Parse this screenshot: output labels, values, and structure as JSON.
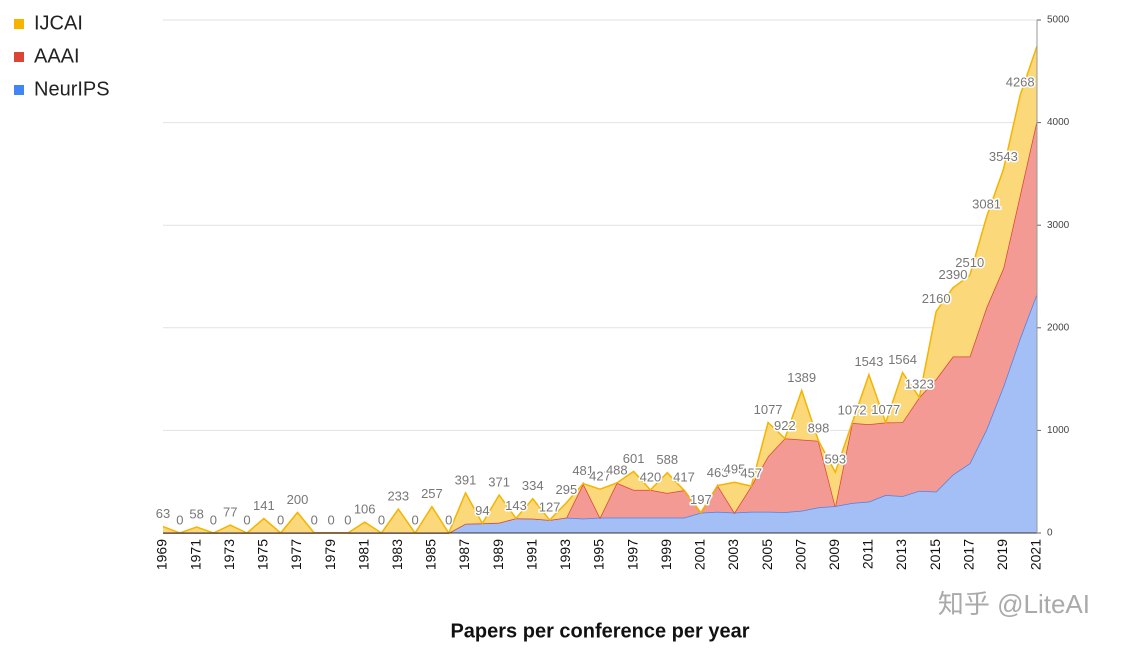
{
  "chart_data": {
    "type": "stacked_area",
    "title": "Papers per conference per year",
    "watermark": "知乎 @LiteAI",
    "categories": [
      "1969",
      null,
      "1971",
      null,
      "1973",
      null,
      "1975",
      null,
      "1977",
      null,
      "1979",
      null,
      "1981",
      null,
      "1983",
      null,
      "1985",
      null,
      "1987",
      null,
      "1989",
      null,
      "1991",
      null,
      "1993",
      null,
      "1995",
      null,
      "1997",
      null,
      "1999",
      null,
      "2001",
      null,
      "2003",
      null,
      "2005",
      null,
      "2007",
      null,
      "2009",
      null,
      "2011",
      null,
      "2013",
      null,
      "2015",
      null,
      "2017",
      null,
      "2019",
      null,
      "2021"
    ],
    "series": [
      {
        "name": "IJCAI",
        "color": "#f4b400",
        "fill": "#fbd87a",
        "values": [
          63,
          0,
          58,
          0,
          77,
          0,
          141,
          0,
          200,
          0,
          0,
          0,
          106,
          0,
          233,
          0,
          257,
          0,
          301,
          0,
          271,
          0,
          194,
          0,
          145,
          0,
          277,
          0,
          181,
          0,
          198,
          0,
          0,
          0,
          297,
          0,
          330,
          0,
          479,
          0,
          331,
          0,
          483,
          0,
          484,
          0,
          660,
          670,
          790,
          881,
          963,
          968,
          720
        ]
      },
      {
        "name": "AAAI",
        "color": "#db4437",
        "fill": "#f29a93",
        "values": [
          0,
          0,
          0,
          0,
          0,
          0,
          0,
          0,
          0,
          0,
          0,
          0,
          0,
          0,
          0,
          0,
          0,
          0,
          0,
          0,
          0,
          0,
          0,
          0,
          0,
          341,
          0,
          338,
          270,
          270,
          240,
          267,
          0,
          256,
          0,
          250,
          540,
          718,
          693,
          648,
          0,
          780,
          754,
          707,
          720,
          912,
          1097,
          1151,
          1041,
          1189,
          1152,
          1400,
          1692
        ]
      },
      {
        "name": "NeurIPS",
        "color": "#4285f4",
        "fill": "#a3bff5",
        "values": [
          0,
          0,
          0,
          0,
          0,
          0,
          0,
          0,
          0,
          0,
          0,
          0,
          0,
          0,
          0,
          0,
          0,
          0,
          90,
          94,
          100,
          143,
          140,
          127,
          150,
          140,
          150,
          150,
          150,
          150,
          150,
          150,
          197,
          207,
          198,
          207,
          207,
          204,
          217,
          250,
          262,
          292,
          306,
          370,
          360,
          411,
          403,
          569,
          679,
          1011,
          1428,
          1900,
          2334
        ]
      }
    ],
    "totals": [
      63,
      0,
      58,
      0,
      77,
      0,
      141,
      0,
      200,
      0,
      0,
      0,
      106,
      0,
      233,
      0,
      257,
      0,
      391,
      94,
      371,
      143,
      334,
      127,
      295,
      481,
      427,
      488,
      601,
      420,
      588,
      417,
      197,
      463,
      495,
      457,
      1077,
      922,
      1389,
      898,
      593,
      1072,
      1543,
      1077,
      1564,
      1323,
      2160,
      2390,
      2510,
      3081,
      3543,
      4268,
      null
    ],
    "ylim": [
      0,
      5000
    ],
    "yticks": [
      0,
      1000,
      2000,
      3000,
      4000,
      5000
    ],
    "grid": true,
    "legend": "top-left"
  }
}
